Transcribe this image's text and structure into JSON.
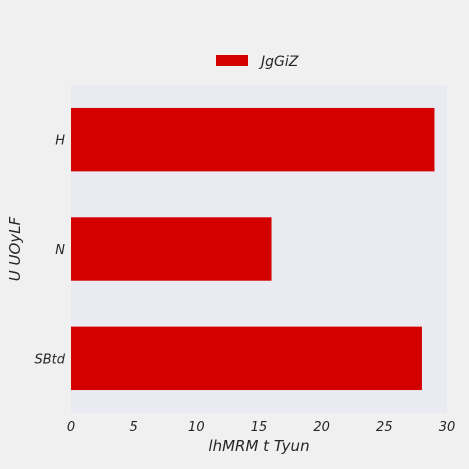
{
  "chart_data": {
    "type": "bar",
    "orientation": "horizontal",
    "title": "",
    "xlabel": "lhMRM  t Tyun",
    "ylabel": "U UOyLF",
    "categories": [
      "H",
      "N",
      "SBtd"
    ],
    "series": [
      {
        "name": "JgGiZ",
        "values": [
          29,
          16,
          28
        ],
        "color": "#d40000"
      }
    ],
    "xlim": [
      0,
      30
    ],
    "xticks": [
      0,
      5,
      10,
      15,
      20,
      25,
      30
    ],
    "grid": false,
    "legend_position": "top-center"
  },
  "colors": {
    "page_background": "#f0f0f0",
    "plot_background": "#eaeaf2",
    "bar": "#d40000"
  }
}
